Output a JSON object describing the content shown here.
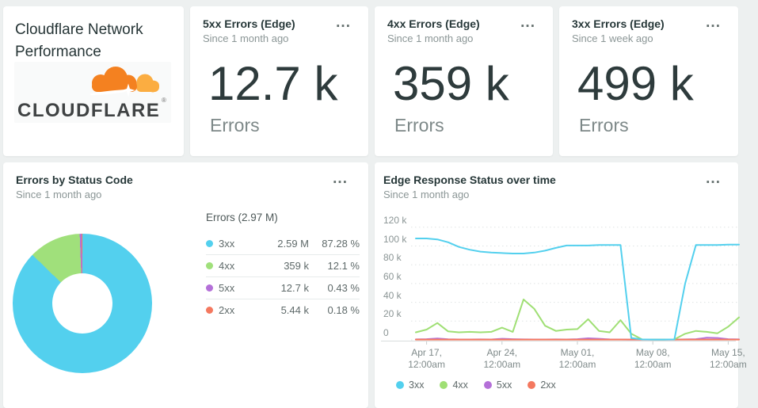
{
  "ui": {
    "menu_icon": "..."
  },
  "header_card": {
    "title": "Cloudflare Network Performance",
    "logo": {
      "wordmark": "CLOUDFLARE",
      "mark": "®",
      "cloud_color": "#f48120",
      "cloud_light_color": "#fbad41",
      "text_color": "#3f4243"
    }
  },
  "billboards": [
    {
      "title": "5xx Errors (Edge)",
      "subtitle": "Since 1 month ago",
      "value": "12.7 k",
      "label": "Errors"
    },
    {
      "title": "4xx Errors (Edge)",
      "subtitle": "Since 1 month ago",
      "value": "359 k",
      "label": "Errors"
    },
    {
      "title": "3xx Errors (Edge)",
      "subtitle": "Since 1 week ago",
      "value": "499 k",
      "label": "Errors"
    }
  ],
  "pie_card": {
    "title": "Errors by Status Code",
    "subtitle": "Since 1 month ago",
    "table": {
      "header": "Errors (2.97 M)",
      "rows": [
        {
          "label": "3xx",
          "value": "2.59 M",
          "percent": "87.28 %",
          "color": "#53d0ee"
        },
        {
          "label": "4xx",
          "value": "359 k",
          "percent": "12.1 %",
          "color": "#a0e07b"
        },
        {
          "label": "5xx",
          "value": "12.7 k",
          "percent": "0.43 %",
          "color": "#b470d8"
        },
        {
          "label": "2xx",
          "value": "5.44 k",
          "percent": "0.18 %",
          "color": "#f4785f"
        }
      ]
    }
  },
  "line_card": {
    "title": "Edge Response Status over time",
    "subtitle": "Since 1 month ago"
  },
  "chart_data": [
    {
      "type": "pie",
      "title": "Errors by Status Code",
      "time_range": "Since 1 month ago",
      "total_label": "Errors (2.97 M)",
      "labels": [
        "3xx",
        "4xx",
        "5xx",
        "2xx"
      ],
      "values_display": [
        "2.59 M",
        "359 k",
        "12.7 k",
        "5.44 k"
      ],
      "percentages": [
        87.28,
        12.1,
        0.43,
        0.18
      ],
      "colors": [
        "#53d0ee",
        "#a0e07b",
        "#b470d8",
        "#f4785f"
      ],
      "style": "donut",
      "legend_position": "right-table"
    },
    {
      "type": "line",
      "title": "Edge Response Status over time",
      "time_range": "Since 1 month ago",
      "x_start": "Apr 16",
      "x_end": "May 16",
      "x_unit": "day",
      "values_unit": "thousands",
      "ylim": [
        0,
        120000
      ],
      "grid": "dotted-horizontal",
      "legend_position": "bottom-left",
      "y_ticks": [
        {
          "k": 120,
          "label": "120 k"
        },
        {
          "k": 100,
          "label": "100 k"
        },
        {
          "k": 80,
          "label": "80 k"
        },
        {
          "k": 60,
          "label": "60 k"
        },
        {
          "k": 40,
          "label": "40 k"
        },
        {
          "k": 20,
          "label": "20 k"
        },
        {
          "k": 0,
          "label": "0"
        }
      ],
      "x_ticks": [
        {
          "index": 1,
          "line1": "Apr 17,",
          "line2": "12:00am"
        },
        {
          "index": 8,
          "line1": "Apr 24,",
          "line2": "12:00am"
        },
        {
          "index": 15,
          "line1": "May 01,",
          "line2": "12:00am"
        },
        {
          "index": 22,
          "line1": "May 08,",
          "line2": "12:00am"
        },
        {
          "index": 29,
          "line1": "May 15,",
          "line2": "12:00am"
        }
      ],
      "series": [
        {
          "name": "3xx",
          "color": "#53d0ee",
          "values_k": [
            108,
            108,
            107,
            104,
            99,
            96,
            94,
            93,
            92.5,
            92,
            92,
            93,
            95,
            98,
            100.5,
            100.5,
            100.5,
            101,
            101,
            101,
            2,
            0.5,
            0.3,
            0.3,
            0.5,
            60,
            101,
            101,
            101,
            101.5,
            101.5
          ]
        },
        {
          "name": "4xx",
          "color": "#9fdf74",
          "values_k": [
            8,
            11,
            18,
            9,
            8,
            8.5,
            8,
            8.5,
            13,
            8.5,
            43,
            33,
            15,
            9.5,
            11,
            11.5,
            22,
            9.5,
            8,
            21,
            6.5,
            0.5,
            0.3,
            0.3,
            0.5,
            6.5,
            9.5,
            8.5,
            7,
            14,
            24
          ]
        },
        {
          "name": "5xx",
          "color": "#b470d8",
          "values_k": [
            0.5,
            0.8,
            1.5,
            0.6,
            0.4,
            0.4,
            0.5,
            0.4,
            1.2,
            0.8,
            0.5,
            0.4,
            0.4,
            0.5,
            0.4,
            0.8,
            1.7,
            1.2,
            0.5,
            0.4,
            0.3,
            0.3,
            0.3,
            0.3,
            0.3,
            0.5,
            0.8,
            2.3,
            2,
            0.8,
            0.5
          ]
        },
        {
          "name": "2xx",
          "color": "#f4785f",
          "values_k": [
            0.3,
            0.3,
            0.3,
            0.3,
            0.3,
            0.3,
            0.3,
            0.3,
            0.3,
            0.3,
            0.3,
            0.3,
            0.3,
            0.3,
            0.3,
            0.3,
            0.3,
            0.3,
            0.3,
            0.3,
            0.3,
            0.3,
            0.3,
            0.3,
            0.3,
            0.3,
            0.3,
            0.3,
            0.3,
            0.3,
            0.3
          ]
        }
      ],
      "draw_order": [
        "5xx",
        "2xx",
        "4xx",
        "3xx"
      ],
      "legend_order": [
        "3xx",
        "4xx",
        "5xx",
        "2xx"
      ]
    }
  ]
}
